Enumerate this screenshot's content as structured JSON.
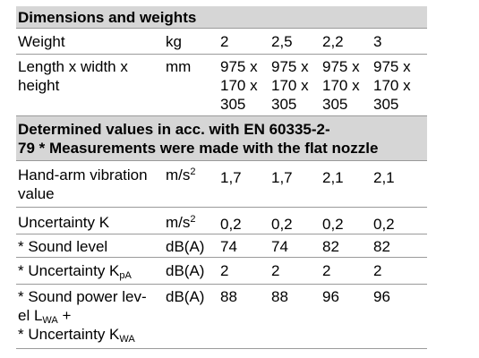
{
  "section1": {
    "title": "Dimensions and weights",
    "rows": [
      {
        "label": "Weight",
        "unit": "kg",
        "values": [
          "2",
          "2,5",
          "2,2",
          "3"
        ]
      },
      {
        "label_lines": [
          "Length x width x",
          "height"
        ],
        "unit": "mm",
        "values": [
          [
            "975 x",
            "170 x",
            "305"
          ],
          [
            "975 x",
            "170 x",
            "305"
          ],
          [
            "975 x",
            "170 x",
            "305"
          ],
          [
            "975 x",
            "170 x",
            "305"
          ]
        ]
      }
    ]
  },
  "section2": {
    "title_lines": [
      "Determined values in acc. with EN 60335-2-",
      "79 * Measurements were made with the flat nozzle"
    ],
    "rows": [
      {
        "label_lines": [
          "Hand-arm vibration",
          "value"
        ],
        "unit_base": "m/s",
        "unit_sup": "2",
        "values": [
          "1,7",
          "1,7",
          "2,1",
          "2,1"
        ]
      },
      {
        "label": "Uncertainty K",
        "unit_base": "m/s",
        "unit_sup": "2",
        "values": [
          "0,2",
          "0,2",
          "0,2",
          "0,2"
        ]
      },
      {
        "label": "* Sound level",
        "unit": "dB(A)",
        "values": [
          "74",
          "74",
          "82",
          "82"
        ]
      },
      {
        "label_base": "* Uncertainty K",
        "label_sub": "pA",
        "unit": "dB(A)",
        "values": [
          "2",
          "2",
          "2",
          "2"
        ]
      },
      {
        "label_line1": "* Sound power lev-",
        "label_line2_base": "el L",
        "label_line2_sub": "WA",
        "label_line2_suffix": " +",
        "label_line3_base": "* Uncertainty K",
        "label_line3_sub": "WA",
        "unit": "dB(A)",
        "values": [
          "88",
          "88",
          "96",
          "96"
        ]
      }
    ]
  }
}
